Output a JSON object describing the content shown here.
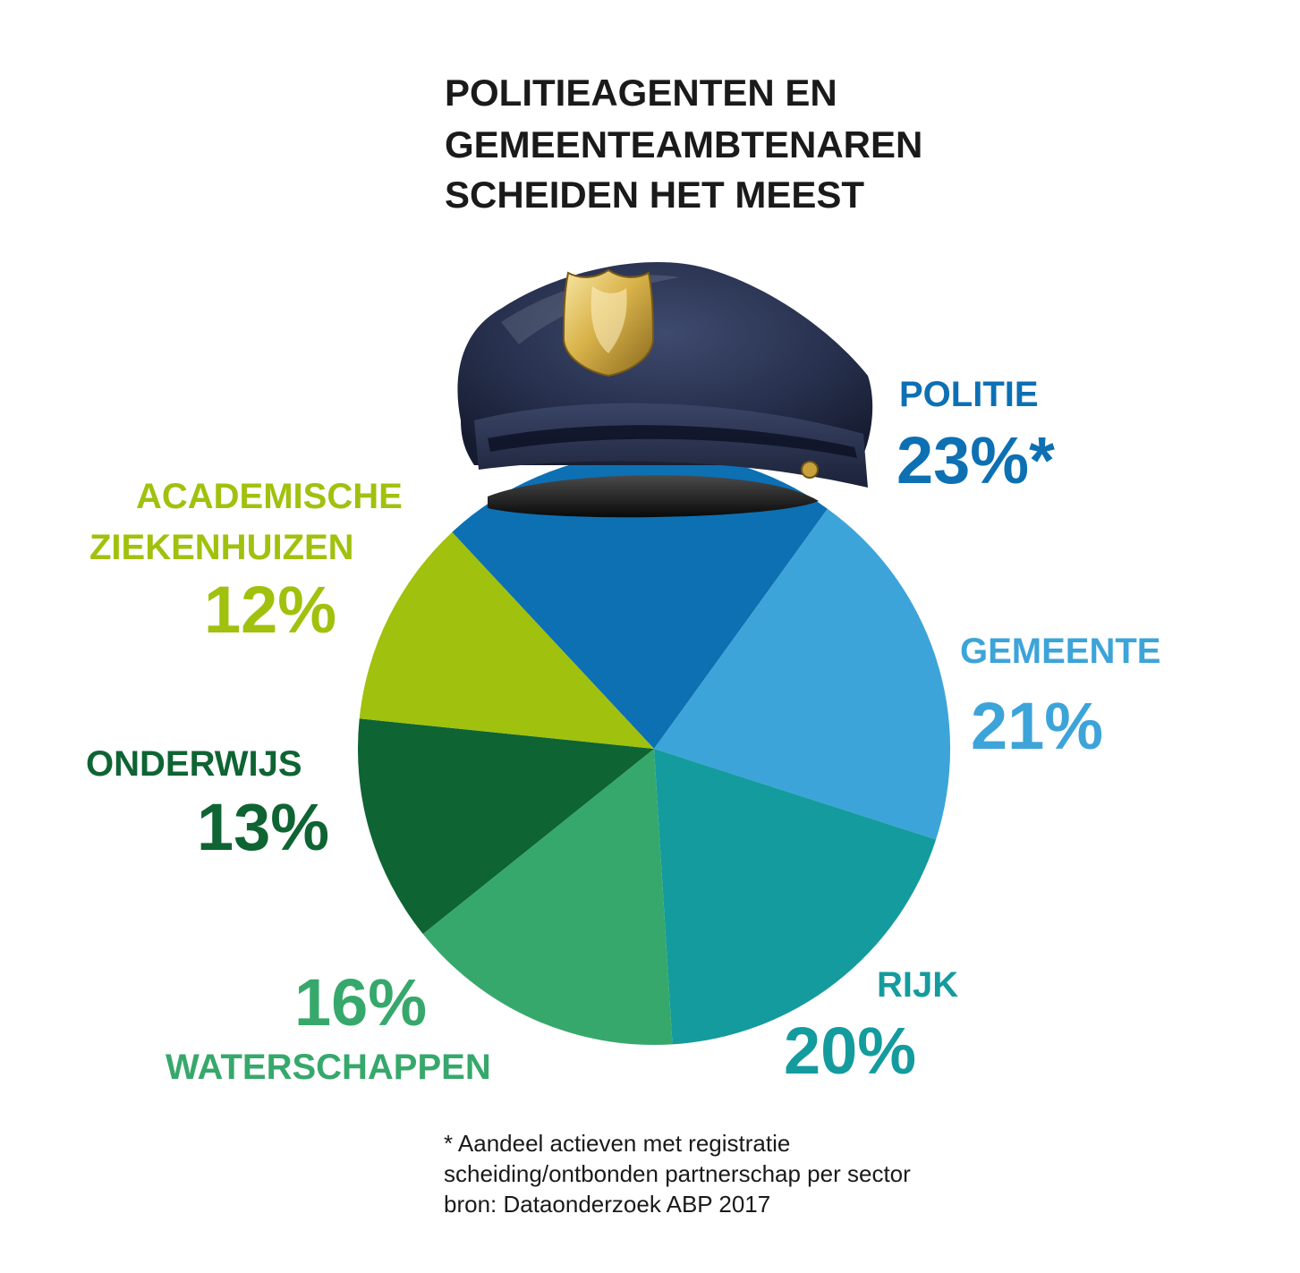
{
  "title_lines": [
    "POLITIEAGENTEN EN",
    "GEMEENTEAMBTENAREN",
    "SCHEIDEN HET MEEST"
  ],
  "chart_data": {
    "type": "pie",
    "title": "POLITIEAGENTEN EN GEMEENTEAMBTENAREN SCHEIDEN HET MEEST",
    "slices": [
      {
        "label_lines": [
          "POLITIE"
        ],
        "value_label": "23%*",
        "value": 23,
        "color": "#0D70B3"
      },
      {
        "label_lines": [
          "GEMEENTE"
        ],
        "value_label": "21%",
        "value": 21,
        "color": "#3DA4D9"
      },
      {
        "label_lines": [
          "RIJK"
        ],
        "value_label": "20%",
        "value": 20,
        "color": "#149B9E"
      },
      {
        "label_lines": [
          "WATERSCHAPPEN"
        ],
        "value_label": "16%",
        "value": 16,
        "color": "#37A86C"
      },
      {
        "label_lines": [
          "ONDERWIJS"
        ],
        "value_label": "13%",
        "value": 13,
        "color": "#0E6433"
      },
      {
        "label_lines": [
          "ACADEMISCHE",
          "ZIEKENHUIZEN"
        ],
        "value_label": "12%",
        "value": 12,
        "color": "#A0C10D"
      }
    ],
    "legend": "none"
  },
  "footnote_lines": [
    "* Aandeel actieven met registratie",
    "scheiding/ontbonden partnerschap per sector",
    "bron: Dataonderzoek ABP 2017"
  ],
  "hat_icon": "police-cap-icon"
}
